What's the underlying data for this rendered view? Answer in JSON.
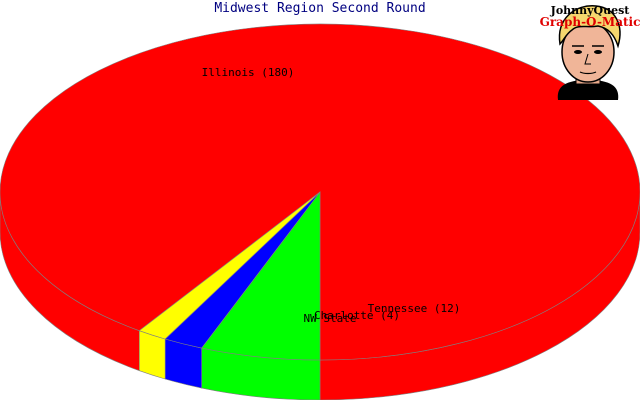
{
  "chart_data": {
    "type": "pie",
    "title": "Midwest Region Second Round",
    "slices": [
      {
        "name": "Illinois",
        "value": 180,
        "label": "Illinois (180)",
        "color": "#ff0000"
      },
      {
        "name": "Tennessee",
        "value": 12,
        "label": "Tennessee (12)",
        "color": "#00ff00"
      },
      {
        "name": "Charlotte",
        "value": 4,
        "label": "Charlotte (4)",
        "color": "#0000ff"
      },
      {
        "name": "NW State",
        "value": 3,
        "label": "NW State",
        "color": "#ffff00"
      }
    ],
    "style": "3d"
  },
  "logo": {
    "line1": "JohnnyQuest",
    "line2": "Graph-O-Matic",
    "icon": "cartoon-boy-face-icon"
  }
}
